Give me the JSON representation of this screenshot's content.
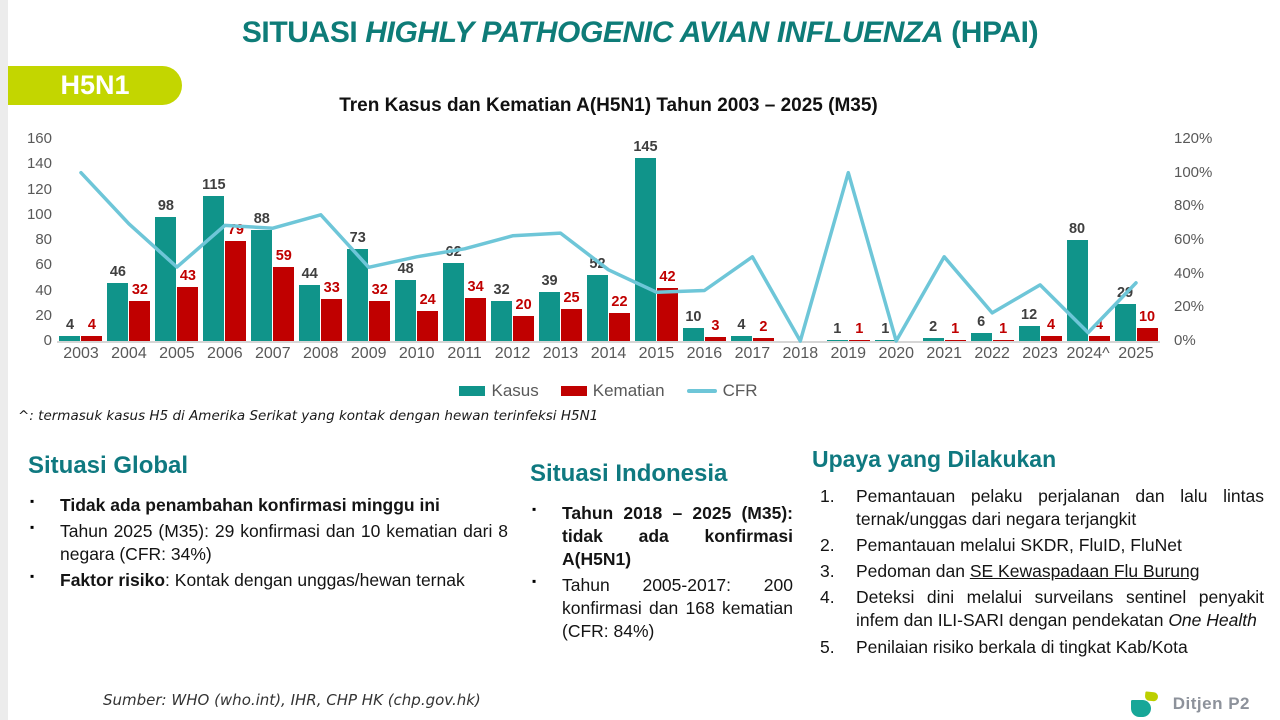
{
  "slide": {
    "title": {
      "prefix": "SITUASI ",
      "emphasis": "HIGHLY PATHOGENIC AVIAN INFLUENZA",
      "suffix": " (HPAI)",
      "color": "#0E7C78"
    },
    "badge": {
      "label": "H5N1",
      "bg_color": "#C3D600"
    },
    "footnote": "^: termasuk kasus H5 di Amerika Serikat yang kontak dengan hewan terinfeksi H5N1",
    "source": "Sumber: WHO (who.int), IHR, CHP HK (chp.gov.hk)",
    "logo": {
      "text": "Ditjen P2",
      "teal": "#17A798",
      "lime": "#BCCF00"
    }
  },
  "chart_data": {
    "type": "bar",
    "subtype": "grouped-bars-with-line",
    "title": "Tren Kasus dan Kematian A(H5N1) Tahun 2003 – 2025 (M35)",
    "categories": [
      "2003",
      "2004",
      "2005",
      "2006",
      "2007",
      "2008",
      "2009",
      "2010",
      "2011",
      "2012",
      "2013",
      "2014",
      "2015",
      "2016",
      "2017",
      "2018",
      "2019",
      "2020",
      "2021",
      "2022",
      "2023",
      "2024^",
      "2025"
    ],
    "series": [
      {
        "name": "Kasus",
        "kind": "bar",
        "color": "#10948A",
        "axis": "left",
        "values": [
          4,
          46,
          98,
          115,
          88,
          44,
          73,
          48,
          62,
          32,
          39,
          52,
          145,
          10,
          4,
          0,
          1,
          1,
          2,
          6,
          12,
          80,
          29
        ]
      },
      {
        "name": "Kematian",
        "kind": "bar",
        "color": "#C00000",
        "axis": "left",
        "values": [
          4,
          32,
          43,
          79,
          59,
          33,
          32,
          24,
          34,
          20,
          25,
          22,
          42,
          3,
          2,
          0,
          1,
          0,
          1,
          1,
          4,
          4,
          10
        ]
      },
      {
        "name": "CFR",
        "kind": "line",
        "color": "#6EC6D8",
        "axis": "right",
        "unit": "%",
        "values": [
          100,
          69.6,
          43.9,
          68.7,
          67,
          75,
          43.8,
          50,
          54.8,
          62.5,
          64.1,
          42.3,
          29,
          30,
          50,
          0,
          100,
          0,
          50,
          16.7,
          33.3,
          5,
          34.5
        ]
      }
    ],
    "left_axis": {
      "min": 0,
      "max": 160,
      "step": 20
    },
    "right_axis": {
      "min": 0,
      "max": 120,
      "step": 20,
      "suffix": "%"
    },
    "grid": false,
    "legend_position": "bottom"
  },
  "sections": {
    "global": {
      "heading": "Situasi Global",
      "bullets": [
        [
          {
            "t": "Tidak ada penambahan konfirmasi minggu ini",
            "s": "b"
          }
        ],
        [
          {
            "t": "Tahun 2025 (M35): 29 konfirmasi dan 10 kematian dari 8 negara (CFR: 34%)",
            "s": ""
          }
        ],
        [
          {
            "t": "Faktor risiko",
            "s": "b"
          },
          {
            "t": ": Kontak dengan unggas/hewan ternak",
            "s": ""
          }
        ]
      ]
    },
    "indonesia": {
      "heading": "Situasi Indonesia",
      "bullets": [
        [
          {
            "t": "Tahun 2018 – 2025 (M35): tidak ada konfirmasi A(H5N1)",
            "s": "b"
          }
        ],
        [
          {
            "t": "Tahun 2005-2017: 200 konfirmasi dan 168 kematian (CFR: 84%)",
            "s": ""
          }
        ]
      ]
    },
    "upaya": {
      "heading": "Upaya yang Dilakukan",
      "items": [
        [
          {
            "t": "Pemantauan pelaku perjalanan dan lalu lintas ternak/unggas dari negara terjangkit",
            "s": ""
          }
        ],
        [
          {
            "t": "Pemantauan melalui SKDR, FluID, FluNet",
            "s": ""
          }
        ],
        [
          {
            "t": "Pedoman dan ",
            "s": ""
          },
          {
            "t": "SE Kewaspadaan Flu Burung",
            "s": "u"
          }
        ],
        [
          {
            "t": "Deteksi dini melalui surveilans sentinel penyakit infem dan ILI-SARI dengan pendekatan ",
            "s": ""
          },
          {
            "t": "One Health",
            "s": "i"
          }
        ],
        [
          {
            "t": "Penilaian risiko berkala di tingkat Kab/Kota",
            "s": ""
          }
        ]
      ]
    }
  }
}
